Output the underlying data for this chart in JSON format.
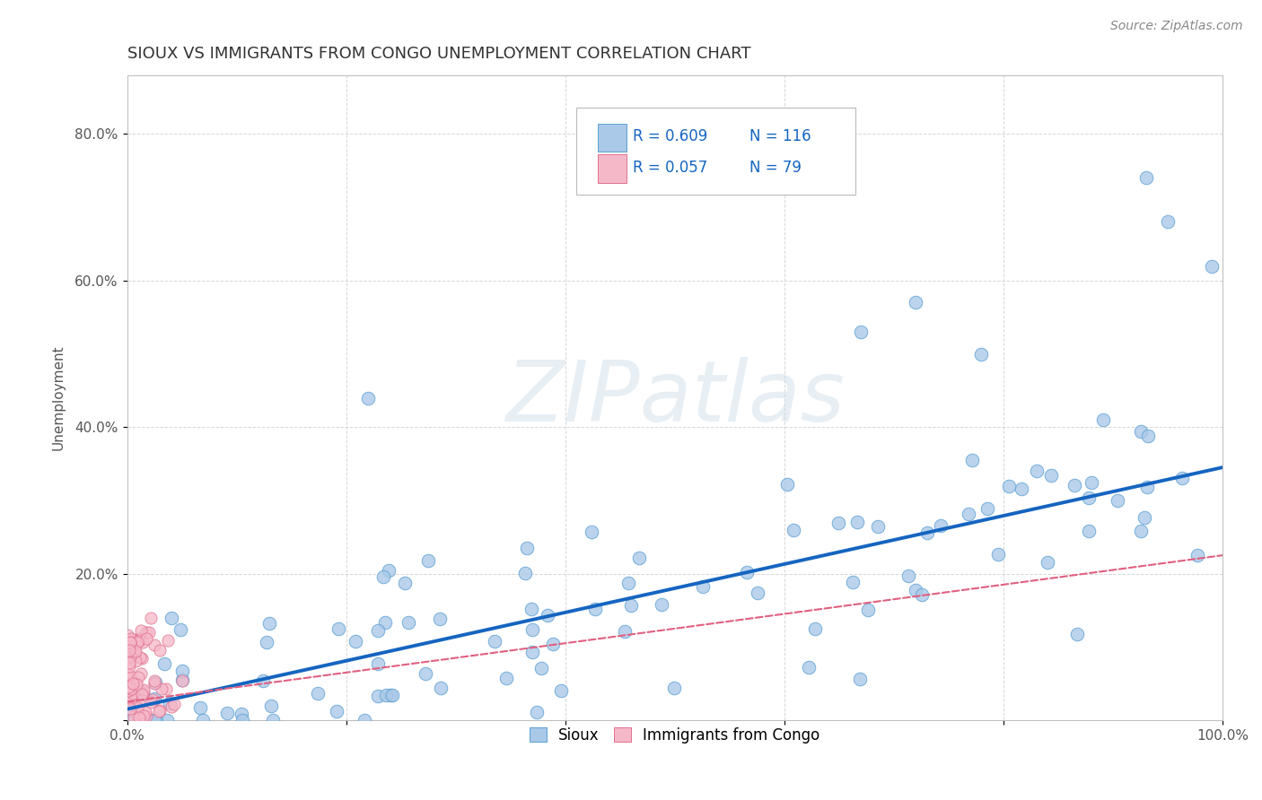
{
  "title": "SIOUX VS IMMIGRANTS FROM CONGO UNEMPLOYMENT CORRELATION CHART",
  "source_text": "Source: ZipAtlas.com",
  "ylabel": "Unemployment",
  "xlim": [
    0.0,
    1.0
  ],
  "ylim": [
    0.0,
    0.88
  ],
  "xticks": [
    0.0,
    0.2,
    0.4,
    0.6,
    0.8,
    1.0
  ],
  "xticklabels": [
    "0.0%",
    "",
    "",
    "",
    "",
    "100.0%"
  ],
  "yticks": [
    0.0,
    0.2,
    0.4,
    0.6,
    0.8
  ],
  "yticklabels": [
    "",
    "20.0%",
    "40.0%",
    "60.0%",
    "80.0%"
  ],
  "sioux_color": "#aac9e8",
  "sioux_edge_color": "#5a9fd4",
  "congo_color": "#f5b8c8",
  "congo_edge_color": "#e07090",
  "trend_sioux_color": "#1565c0",
  "trend_congo_color": "#e06080",
  "legend_R_sioux": "0.609",
  "legend_N_sioux": "116",
  "legend_R_congo": "0.057",
  "legend_N_congo": "79",
  "watermark_text": "ZIPatlas",
  "background_color": "#ffffff",
  "grid_color": "#cccccc",
  "title_color": "#333333",
  "source_color": "#888888",
  "axis_label_color": "#555555"
}
